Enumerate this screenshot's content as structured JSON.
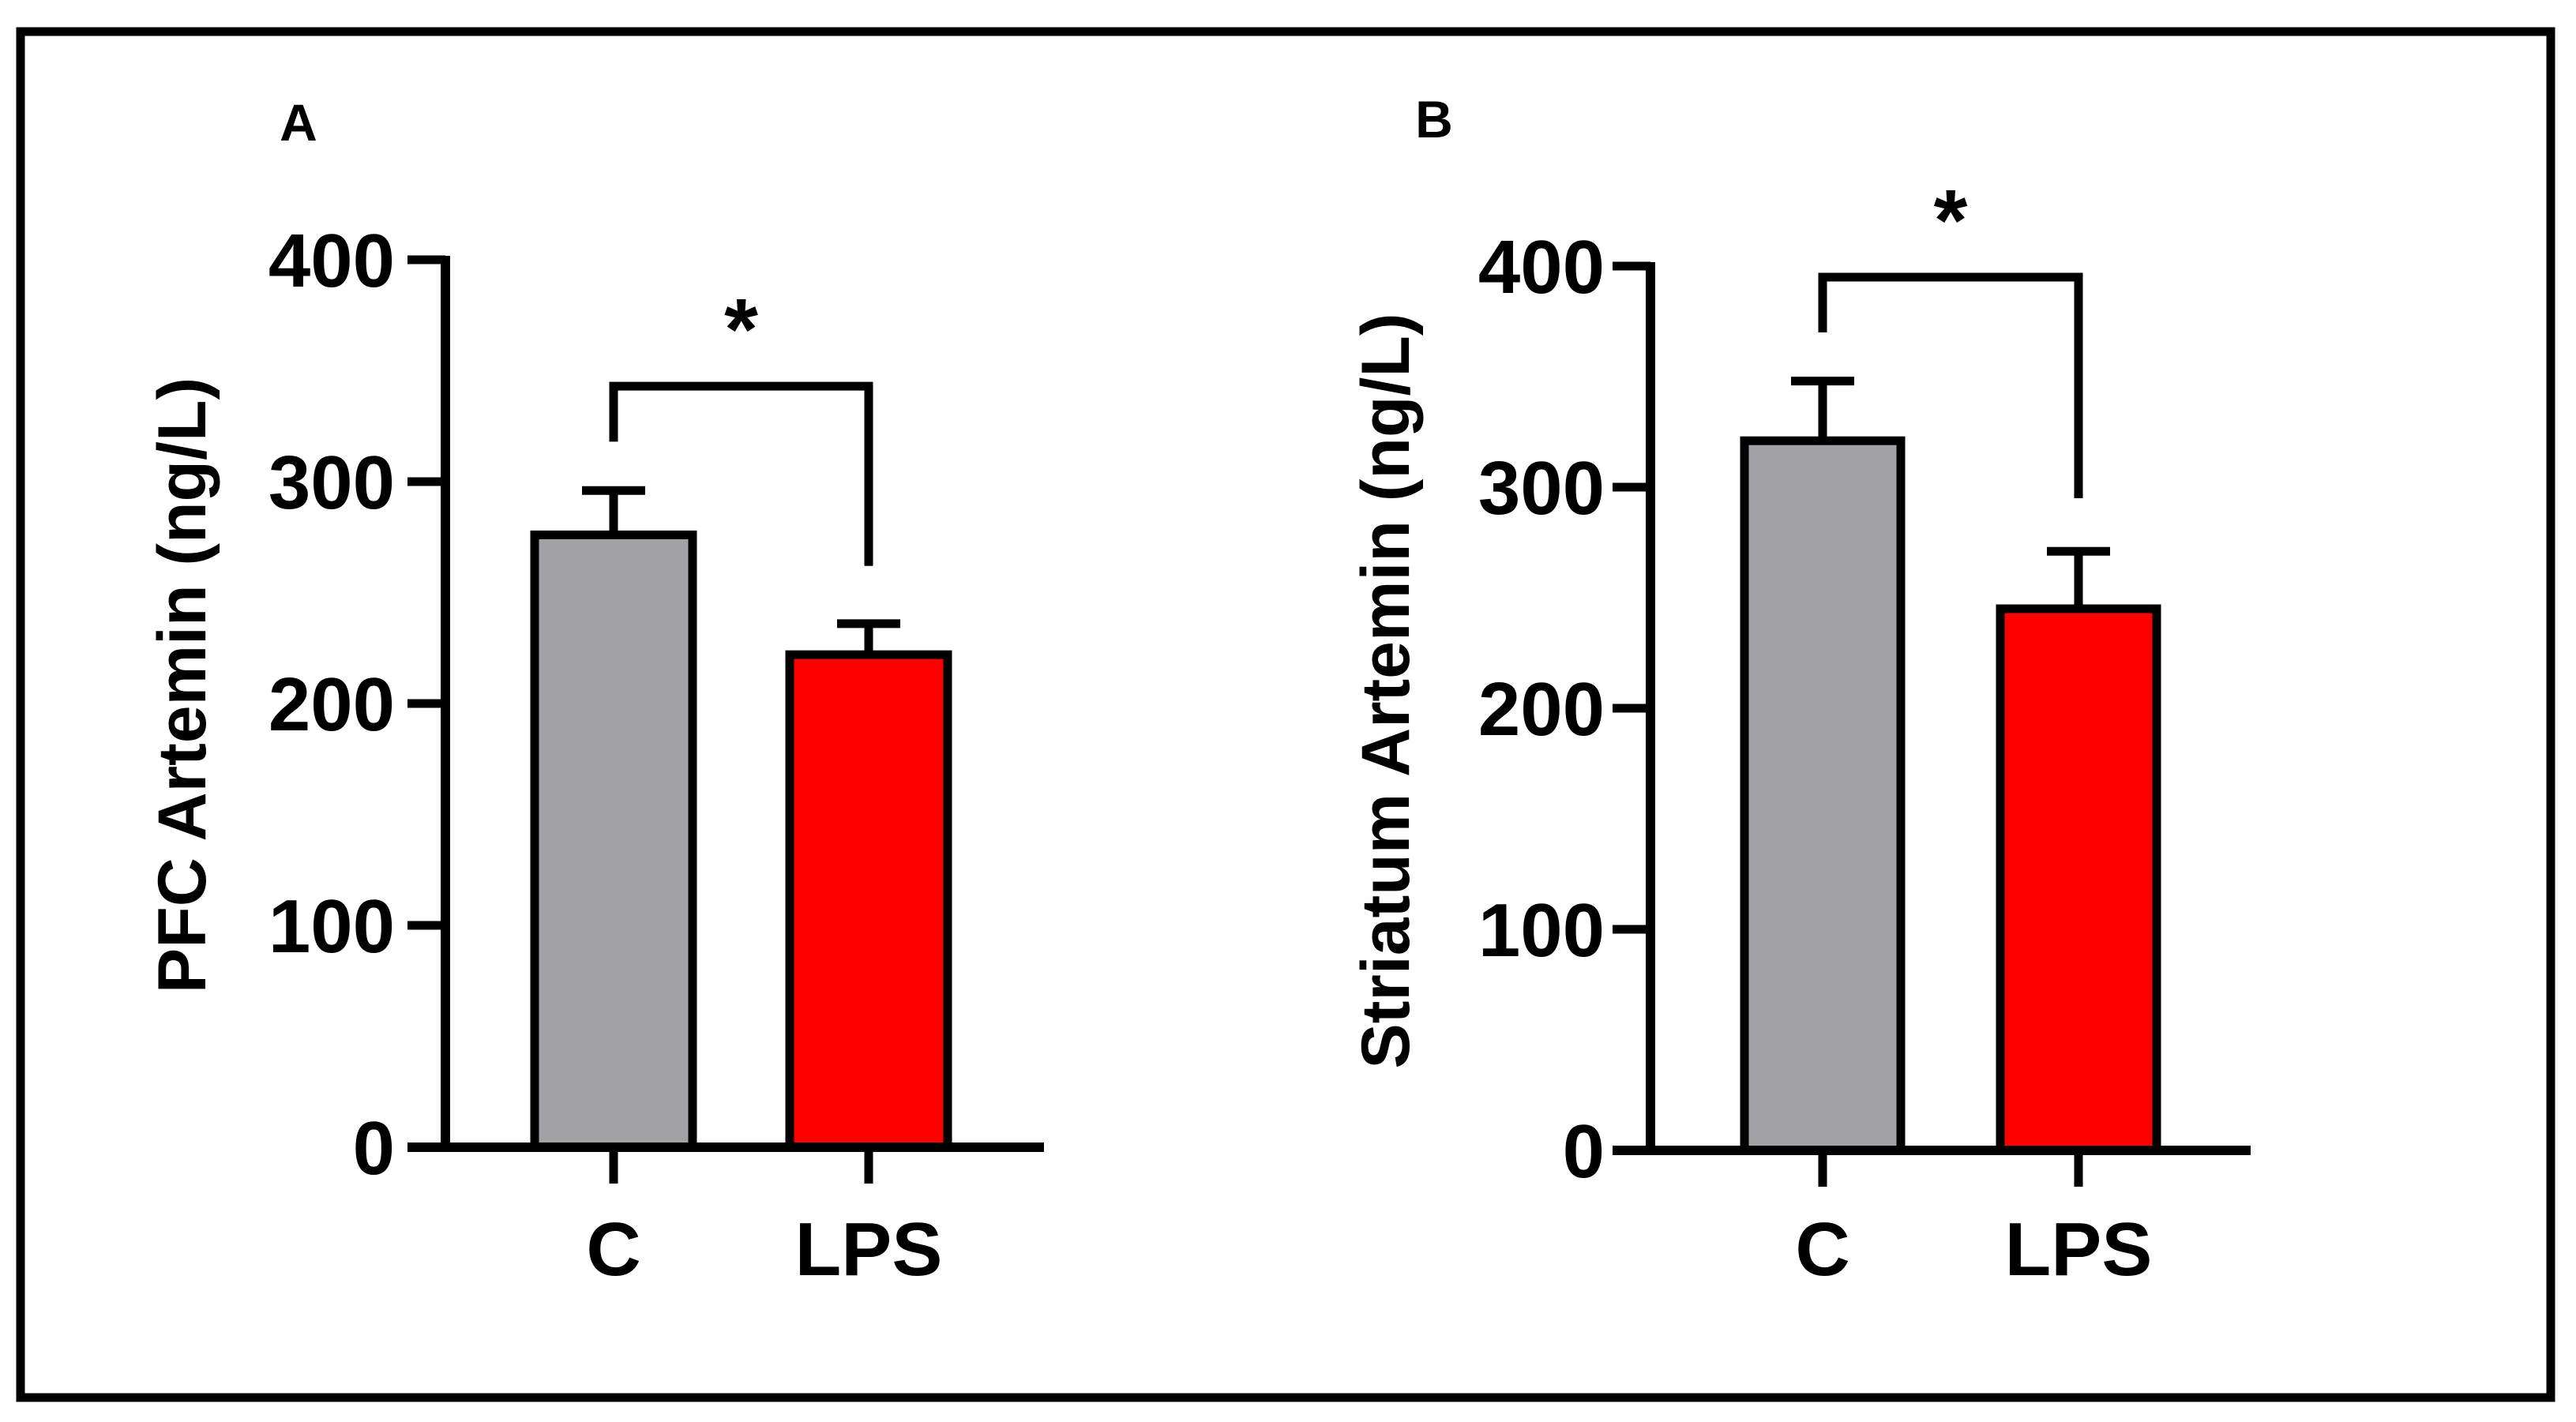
{
  "figure": {
    "border_color": "#000000",
    "background": "#ffffff"
  },
  "chart_data": [
    {
      "type": "bar",
      "panel_label": "A",
      "title": "",
      "xlabel": "",
      "ylabel": "PFC Artemin (ng/L)",
      "ylim": [
        0,
        400
      ],
      "yticks": [
        0,
        100,
        200,
        300,
        400
      ],
      "ytick_labels": [
        "0",
        "100",
        "200",
        "300",
        "400"
      ],
      "categories": [
        "C",
        "LPS"
      ],
      "values": [
        276,
        222
      ],
      "errors": [
        20,
        14
      ],
      "colors": [
        "#a2a1a6",
        "#ff0000"
      ],
      "significance": {
        "between": [
          "C",
          "LPS"
        ],
        "label": "*",
        "bracket_y": 343,
        "left_drop_to": 318,
        "right_drop_to": 262
      },
      "grid": false
    },
    {
      "type": "bar",
      "panel_label": "B",
      "title": "",
      "xlabel": "",
      "ylabel": "Striatum Artemin (ng/L)",
      "ylim": [
        0,
        400
      ],
      "yticks": [
        0,
        100,
        200,
        300,
        400
      ],
      "ytick_labels": [
        "0",
        "100",
        "200",
        "300",
        "400"
      ],
      "categories": [
        "C",
        "LPS"
      ],
      "values": [
        321,
        245
      ],
      "errors": [
        27,
        26
      ],
      "colors": [
        "#a2a1a6",
        "#ff0000"
      ],
      "significance": {
        "between": [
          "C",
          "LPS"
        ],
        "label": "*",
        "bracket_y": 395,
        "left_drop_to": 370,
        "right_drop_to": 295
      },
      "grid": false
    }
  ]
}
